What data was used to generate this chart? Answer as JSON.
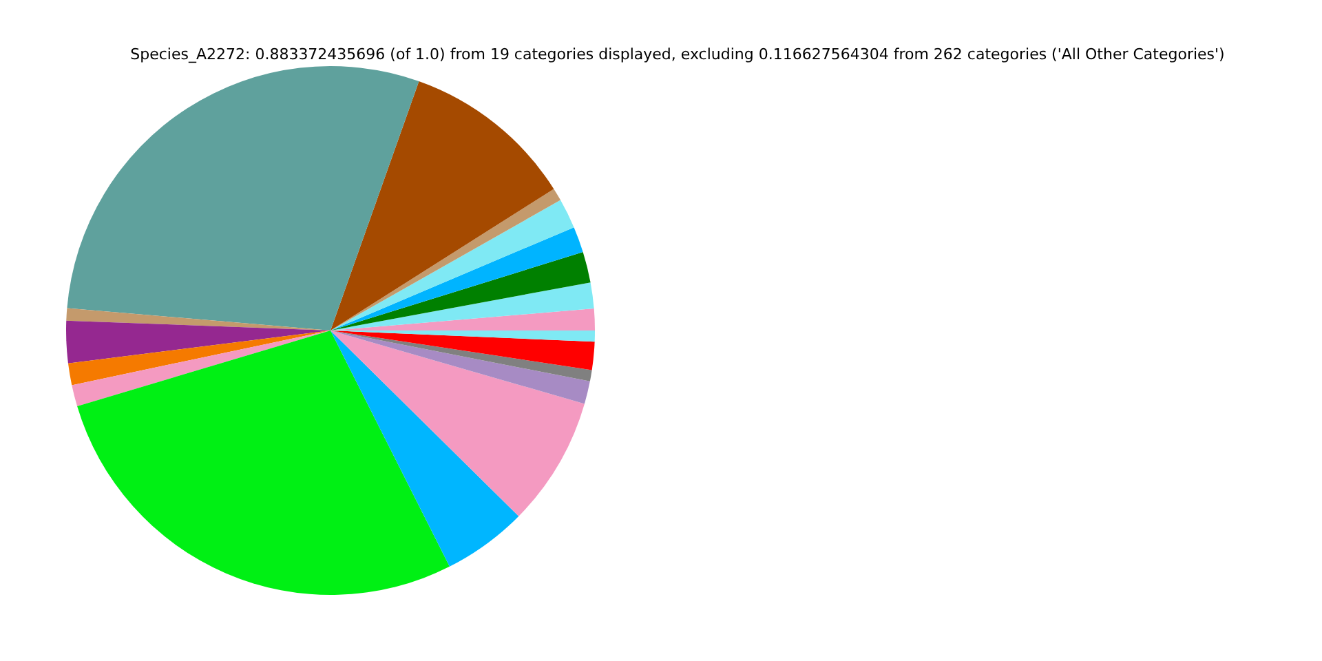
{
  "chart_data": {
    "type": "pie",
    "title": "Species_A2272: 0.883372435696 (of 1.0) from 19 categories displayed, excluding 0.116627564304 from 262 categories ('All Other Categories')",
    "categories": [
      null,
      null,
      null,
      null,
      null,
      null,
      null,
      null,
      null,
      null,
      null,
      null,
      null,
      null,
      null,
      null,
      null,
      null,
      null
    ],
    "values": [
      1.33,
      1.58,
      1.89,
      1.58,
      1.83,
      0.78,
      10.58,
      29.08,
      0.75,
      2.58,
      1.33,
      1.31,
      27.81,
      5.17,
      7.92,
      1.39,
      0.69,
      1.72,
      0.67
    ],
    "colors": [
      "#f49ac1",
      "#7fe9f4",
      "#008000",
      "#00b4ff",
      "#7fe9f4",
      "#c49a6c",
      "#a54a00",
      "#5fa19d",
      "#c49a6c",
      "#952890",
      "#f57a00",
      "#f49ac1",
      "#00f014",
      "#00b6ff",
      "#f49ac1",
      "#a78bc4",
      "#808080",
      "#ff0000",
      "#7fe9f4"
    ],
    "legend": false
  }
}
